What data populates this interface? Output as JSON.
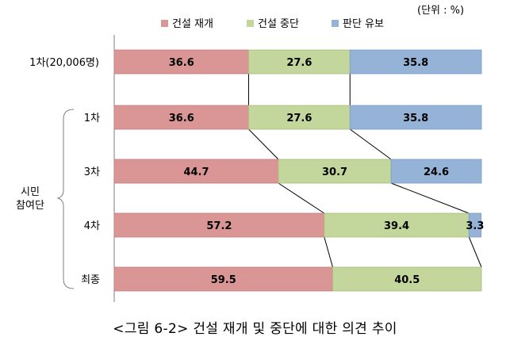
{
  "unit_note": "(단위 : %)",
  "caption": "<그림 6-2> 건설 재개 및 중단에 대한 의견 추이",
  "colors": {
    "resume": "#d99694",
    "halt": "#c3d69b",
    "pending": "#95b3d7",
    "resume_edge": "#c07c7a",
    "halt_edge": "#a9bf7e",
    "pending_edge": "#7b9cc6"
  },
  "chart_data": {
    "type": "bar",
    "stacked": true,
    "orientation": "horizontal",
    "percent_stacked": true,
    "xlim": [
      0,
      100
    ],
    "categories": [
      "1차(20,006명)",
      "1차",
      "3차",
      "4차",
      "최종"
    ],
    "group_label": "시민\n참여단",
    "group_members": [
      "1차",
      "3차",
      "4차",
      "최종"
    ],
    "legend_position": "top",
    "series": [
      {
        "name": "건설 재개",
        "values": [
          36.6,
          36.6,
          44.7,
          57.2,
          59.5
        ]
      },
      {
        "name": "건설 중단",
        "values": [
          27.6,
          27.6,
          30.7,
          39.4,
          40.5
        ]
      },
      {
        "name": "판단 유보",
        "values": [
          35.8,
          35.8,
          24.6,
          3.3,
          null
        ]
      }
    ],
    "value_labels": [
      [
        "36.6",
        "27.6",
        "35.8"
      ],
      [
        "36.6",
        "27.6",
        "35.8"
      ],
      [
        "44.7",
        "30.7",
        "24.6"
      ],
      [
        "57.2",
        "39.4",
        "3.3"
      ],
      [
        "59.5",
        "40.5",
        ""
      ]
    ],
    "series_lines": true
  }
}
